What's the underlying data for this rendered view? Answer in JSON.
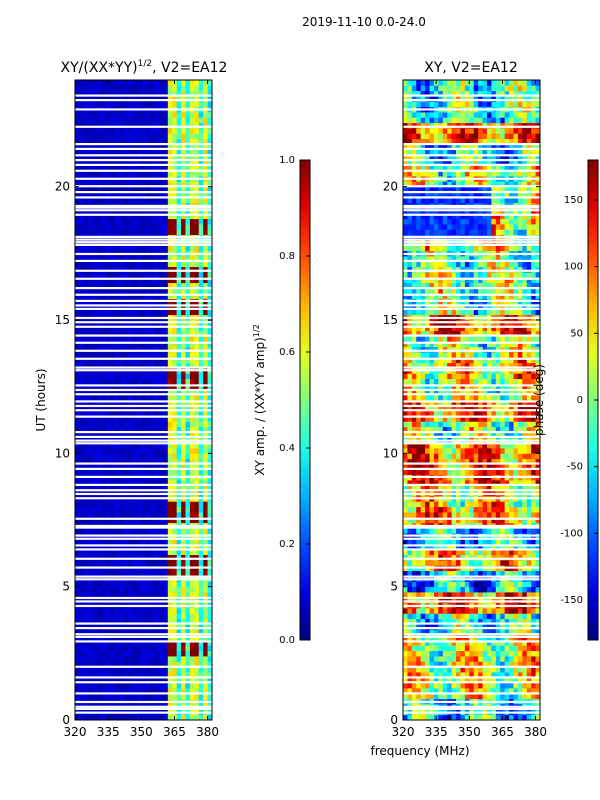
{
  "figure": {
    "suptitle": "2019-11-10 0.0-24.0"
  },
  "chart_data": [
    {
      "type": "heatmap",
      "title": "XY/(XX*YY)",
      "title_exponent": "1/2",
      "title_suffix": ", V2=EA12",
      "xlabel": "",
      "ylabel": "UT (hours)",
      "xlim": [
        320,
        382
      ],
      "ylim": [
        0,
        24
      ],
      "xticks": [
        320,
        335,
        350,
        365,
        380
      ],
      "yticks": [
        0,
        5,
        10,
        15,
        20
      ],
      "active_band_mhz": [
        362.5,
        382
      ],
      "strong_channels_mhz": [
        364,
        369,
        374,
        379
      ],
      "bright_spot_hours": [
        2.7,
        5.8,
        7.8,
        12.8,
        15.5,
        16.7,
        18.5
      ],
      "colorbar": {
        "label": "XY amp. / (XX*YY amp)",
        "label_exponent": "1/2",
        "range": [
          0.0,
          1.0
        ],
        "ticks": [
          "0.0",
          "0.2",
          "0.4",
          "0.6",
          "0.8",
          "1.0"
        ],
        "colormap": "jet"
      }
    },
    {
      "type": "heatmap",
      "title": "XY, V2=EA12",
      "xlabel": "frequency (MHz)",
      "ylabel": "",
      "xlim": [
        320,
        382
      ],
      "ylim": [
        0,
        24
      ],
      "xticks": [
        320,
        335,
        350,
        365,
        380
      ],
      "yticks": [
        0,
        5,
        10,
        15,
        20
      ],
      "colorbar": {
        "label": "phase (deg)",
        "range": [
          -180,
          180
        ],
        "ticks": [
          "-150",
          "-100",
          "-50",
          "0",
          "50",
          "100",
          "150"
        ],
        "colormap": "jet"
      }
    }
  ],
  "flagged_hours": [
    0.28,
    0.42,
    0.5,
    0.68,
    1.0,
    1.42,
    1.6,
    2.0,
    2.95,
    3.12,
    3.22,
    3.45,
    3.62,
    4.28,
    4.45,
    4.58,
    5.28,
    5.38,
    5.72,
    6.05,
    6.4,
    6.55,
    6.8,
    6.92,
    7.22,
    7.28,
    7.55,
    8.32,
    8.48,
    8.62,
    8.82,
    9.12,
    9.42,
    9.62,
    10.38,
    10.48,
    10.62,
    10.8,
    11.38,
    11.62,
    11.78,
    11.95,
    12.22,
    12.38,
    12.55,
    13.12,
    13.22,
    13.55,
    13.85,
    14.15,
    14.42,
    14.75,
    14.92,
    15.08,
    15.42,
    15.55,
    15.72,
    15.95,
    16.2,
    16.55,
    16.85,
    17.22,
    17.48,
    17.82,
    17.92,
    18.02,
    18.12,
    18.95,
    19.12,
    19.22,
    19.28,
    19.6,
    19.8,
    20.02,
    20.3,
    20.6,
    20.82,
    21.0,
    21.18,
    21.42,
    21.6,
    22.25,
    22.9,
    23.25,
    23.42
  ]
}
